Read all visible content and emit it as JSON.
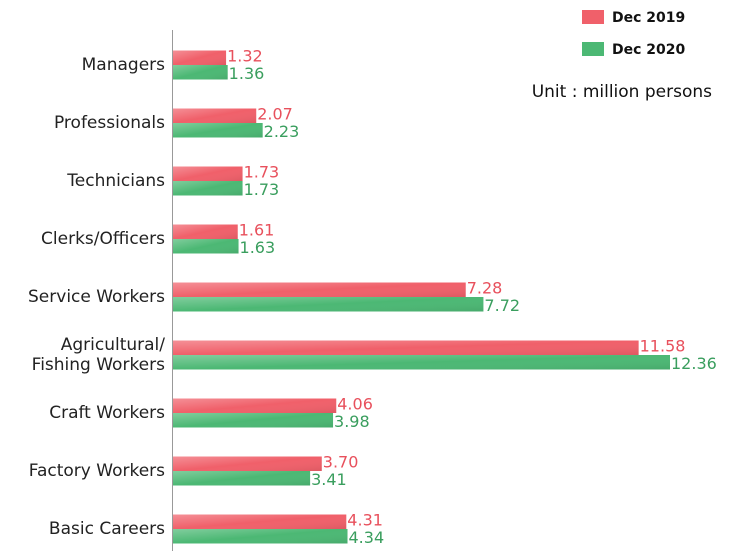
{
  "chart_data": {
    "type": "bar",
    "orientation": "horizontal",
    "subtitle": "Unit : million persons",
    "categories": [
      "Managers",
      "Professionals",
      "Technicians",
      "Clerks/Officers",
      "Service Workers",
      "Agricultural/\nFishing Workers",
      "Craft Workers",
      "Factory Workers",
      "Basic Careers"
    ],
    "series": [
      {
        "name": "Dec 2019",
        "color": "#f0606a",
        "label_color": "#e8505c",
        "values": [
          1.32,
          2.07,
          1.73,
          1.61,
          7.28,
          11.58,
          4.06,
          3.7,
          4.31
        ],
        "value_labels": [
          "1.32",
          "2.07",
          "1.73",
          "1.61",
          "7.28",
          "11.58",
          "4.06",
          "3.70",
          "4.31"
        ]
      },
      {
        "name": "Dec 2020",
        "color": "#4cb874",
        "label_color": "#3a9e5e",
        "values": [
          1.36,
          2.23,
          1.73,
          1.63,
          7.72,
          12.36,
          3.98,
          3.41,
          4.34
        ],
        "value_labels": [
          "1.36",
          "2.23",
          "1.73",
          "1.63",
          "7.72",
          "12.36",
          "3.98",
          "3.41",
          "4.34"
        ]
      }
    ],
    "legend": "top-right"
  }
}
